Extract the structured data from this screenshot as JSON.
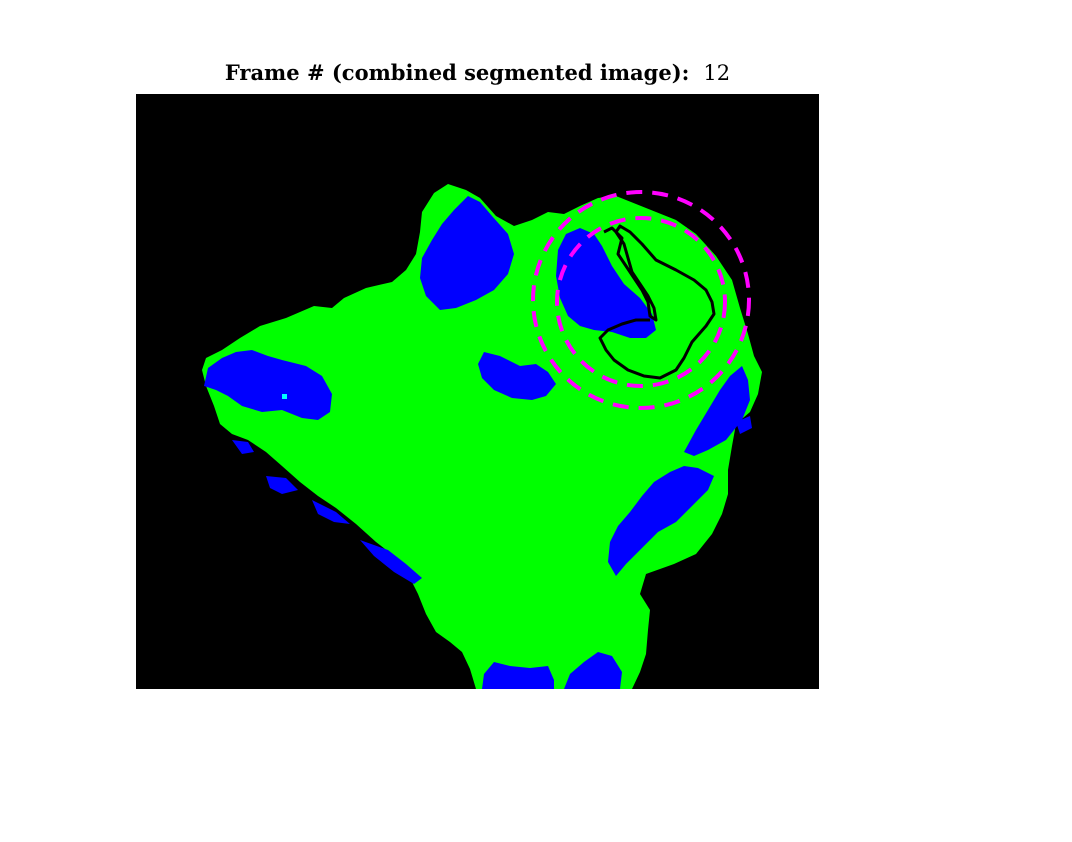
{
  "figure": {
    "title_label": "Frame # (combined segmented image):",
    "frame_number": "12"
  },
  "colors": {
    "background": "#000000",
    "segment_green": "#00ff00",
    "segment_blue": "#0000ff",
    "segment_cyan": "#00ffff",
    "circle_magenta": "#ff00ff",
    "contour": "#000000"
  },
  "icons": {
    "tracking_circles": "dashed-circle-pair",
    "region_contour": "black-outline"
  }
}
